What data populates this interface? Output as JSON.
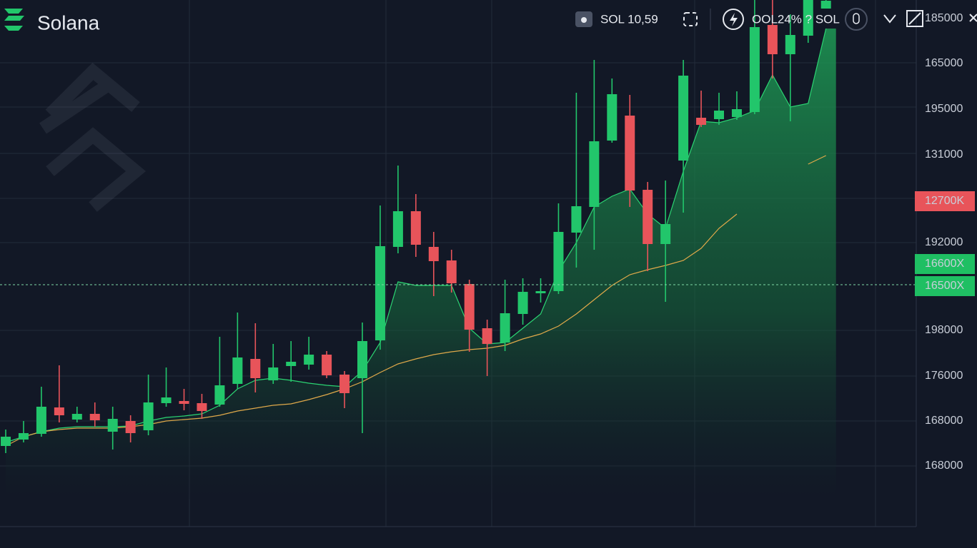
{
  "header": {
    "brand": "Solana",
    "ticker": "SOL 10,59",
    "change": "OOL24% ? SOL"
  },
  "price_scale": [
    {
      "label": "185000"
    },
    {
      "label": "165000"
    },
    {
      "label": "195000"
    },
    {
      "label": "131000"
    },
    {
      "label": "12700K",
      "badge": "#e8545a"
    },
    {
      "label": "192000"
    },
    {
      "label": "16600X",
      "badge": "#1fbf63"
    },
    {
      "label": "16500X",
      "badge": "#1fbf63"
    },
    {
      "label": "198000"
    },
    {
      "label": "176000"
    },
    {
      "label": "168000"
    },
    {
      "label": "168000"
    }
  ],
  "chart_data": {
    "type": "candlestick",
    "ylim": [
      0,
      74
    ],
    "up_color": "#22c66b",
    "down_color": "#e8545a",
    "open": [
      11.5,
      12.4,
      13.2,
      16.9,
      15.2,
      16.0,
      13.5,
      15.0,
      13.7,
      17.5,
      17.8,
      17.5,
      17.3,
      20.2,
      23.7,
      20.7,
      22.7,
      22.9,
      24.3,
      21.5,
      21.0,
      26.3,
      39.4,
      44.4,
      39.4,
      37.5,
      34.2,
      28.0,
      26.0,
      30.0,
      32.9,
      33.2,
      41.4,
      45.0,
      54.3,
      57.8,
      47.4,
      39.8,
      51.5,
      57.5,
      57.3,
      57.6,
      58.3,
      70.5,
      66.4,
      69.0,
      72.8
    ],
    "close": [
      12.8,
      13.3,
      17.0,
      15.8,
      16.0,
      15.1,
      15.3,
      13.3,
      17.6,
      18.3,
      17.4,
      16.4,
      20.0,
      23.9,
      21.0,
      22.5,
      23.3,
      24.3,
      21.4,
      18.9,
      26.2,
      39.5,
      44.4,
      39.7,
      37.4,
      34.3,
      27.8,
      25.8,
      30.1,
      33.1,
      33.2,
      41.5,
      45.1,
      54.2,
      60.8,
      47.3,
      39.8,
      42.6,
      63.4,
      56.5,
      58.5,
      58.7,
      70.2,
      66.4,
      69.1,
      74,
      73.9
    ],
    "high": [
      13.8,
      15.0,
      19.8,
      22.8,
      17.0,
      17.6,
      17.0,
      15.8,
      21.5,
      22.5,
      19.5,
      18.8,
      26.8,
      30.2,
      28.7,
      25.8,
      26.2,
      26.8,
      24.8,
      22.0,
      28.8,
      45.2,
      50.8,
      46.8,
      41.5,
      39.0,
      34.8,
      29.2,
      34.8,
      35.0,
      35.0,
      45.5,
      61.0,
      65.6,
      63.0,
      60.7,
      48.5,
      48.7,
      65.6,
      61.3,
      61.0,
      61.2,
      74,
      74,
      72.0,
      74,
      74
    ],
    "low": [
      10.5,
      12.0,
      12.8,
      14.8,
      14.8,
      14.2,
      11.0,
      12.0,
      13.0,
      17.0,
      16.5,
      15.3,
      17.0,
      19.5,
      19.0,
      20.2,
      20.5,
      22.2,
      21.0,
      16.8,
      13.3,
      25.0,
      38.5,
      38.0,
      32.5,
      33.0,
      24.7,
      21.3,
      24.8,
      28.5,
      31.6,
      32.8,
      36.5,
      39.0,
      54.0,
      45.0,
      36.0,
      31.7,
      44.2,
      56.2,
      56.5,
      57.2,
      58.0,
      63.0,
      57.0,
      68.0,
      72.8
    ],
    "area": {
      "color": "#2bd472",
      "values": [
        12.0,
        12.8,
        13.5,
        14.0,
        14.2,
        14.2,
        14.2,
        14.3,
        15.0,
        15.5,
        15.7,
        16.0,
        17.2,
        19.5,
        20.7,
        21.0,
        20.7,
        20.3,
        20.0,
        19.8,
        22.0,
        26.0,
        34.5,
        34.0,
        34.0,
        34.0,
        28.0,
        25.8,
        26.0,
        28.0,
        30.0,
        36.0,
        40.0,
        45.0,
        46.5,
        47.5,
        44.0,
        42.0,
        50.0,
        57.0,
        56.8,
        57.5,
        58.5,
        63.5,
        59.0,
        59.5,
        70.0
      ]
    },
    "ma": {
      "color": "#e0a94a",
      "values": [
        11.5,
        12.8,
        13.5,
        13.8,
        14.0,
        14.0,
        14.0,
        14.2,
        14.5,
        15.0,
        15.2,
        15.4,
        15.8,
        16.4,
        16.8,
        17.2,
        17.4,
        18.0,
        18.7,
        19.5,
        20.5,
        21.8,
        23.0,
        23.7,
        24.3,
        24.7,
        25.0,
        25.2,
        25.6,
        26.5,
        27.2,
        28.3,
        30.0,
        32.0,
        34.0,
        35.5,
        36.2,
        36.8,
        37.5,
        39.2,
        42.0,
        44.0,
        null,
        null,
        null,
        51.0,
        52.2
      ]
    }
  }
}
